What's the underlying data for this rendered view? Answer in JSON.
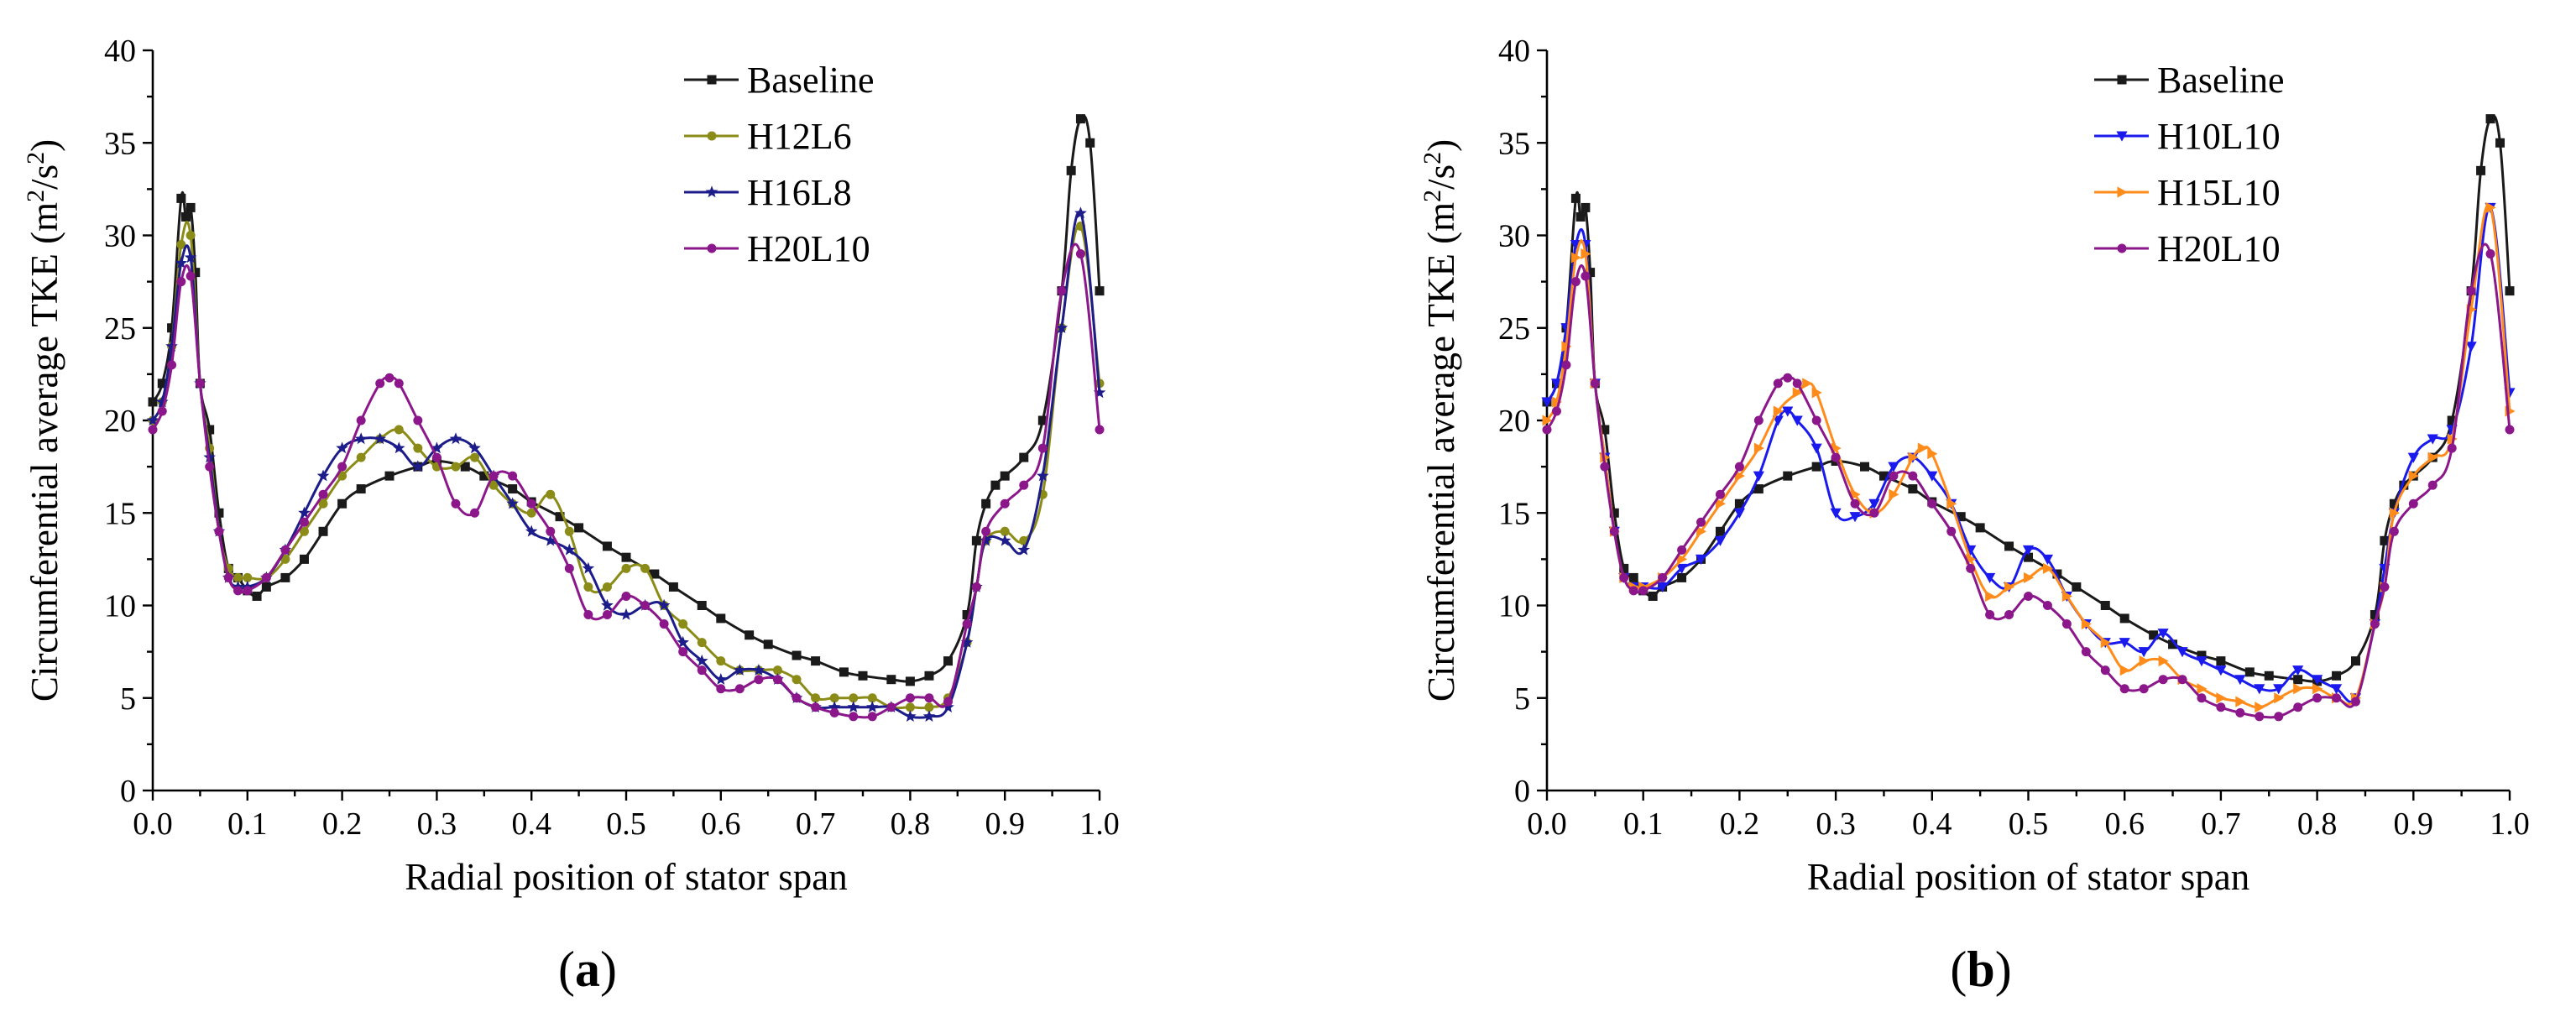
{
  "chart_data": [
    {
      "type": "line",
      "panel_label": "a",
      "xlabel": "Radial position of stator span",
      "ylabel": "Circumferential average TKE (m²/s²)",
      "ylabel_parts": {
        "pre": "Circumferential average TKE (m",
        "sup1": "2",
        "mid": "/s",
        "sup2": "2",
        "post": ")"
      },
      "xlim": [
        0,
        1
      ],
      "ylim": [
        0,
        40
      ],
      "xticks": [
        "0.0",
        "0.1",
        "0.2",
        "0.3",
        "0.4",
        "0.5",
        "0.6",
        "0.7",
        "0.8",
        "0.9",
        "1.0"
      ],
      "yticks": [
        "0",
        "5",
        "10",
        "15",
        "20",
        "25",
        "30",
        "35",
        "40"
      ],
      "legend": [
        "Baseline",
        "H12L6",
        "H16L8",
        "H20L10"
      ],
      "series": [
        {
          "name": "Baseline",
          "color": "#1a1a1a",
          "marker": "square",
          "x": [
            0.0,
            0.01,
            0.02,
            0.03,
            0.035,
            0.04,
            0.045,
            0.05,
            0.06,
            0.07,
            0.08,
            0.09,
            0.1,
            0.11,
            0.12,
            0.14,
            0.16,
            0.18,
            0.2,
            0.22,
            0.25,
            0.28,
            0.3,
            0.33,
            0.35,
            0.38,
            0.4,
            0.43,
            0.45,
            0.48,
            0.5,
            0.53,
            0.55,
            0.58,
            0.6,
            0.63,
            0.65,
            0.68,
            0.7,
            0.73,
            0.75,
            0.78,
            0.8,
            0.82,
            0.84,
            0.86,
            0.87,
            0.88,
            0.89,
            0.9,
            0.92,
            0.94,
            0.96,
            0.97,
            0.98,
            0.99,
            1.0
          ],
          "y": [
            21,
            22,
            25,
            32,
            31,
            31.5,
            28,
            22,
            19.5,
            15,
            12,
            11.5,
            10.8,
            10.5,
            11,
            11.5,
            12.5,
            14,
            15.5,
            16.3,
            17,
            17.5,
            17.8,
            17.5,
            17,
            16.3,
            15.6,
            14.8,
            14.2,
            13.2,
            12.6,
            11.7,
            11,
            10,
            9.3,
            8.4,
            7.9,
            7.3,
            7,
            6.4,
            6.2,
            6,
            5.9,
            6.2,
            7,
            9.5,
            13.5,
            15.5,
            16.5,
            17,
            18,
            20,
            27,
            33.5,
            36.3,
            35,
            27
          ]
        },
        {
          "name": "H12L6",
          "color": "#8b8b17",
          "marker": "circle",
          "x": [
            0.0,
            0.01,
            0.02,
            0.03,
            0.04,
            0.05,
            0.06,
            0.07,
            0.08,
            0.09,
            0.1,
            0.12,
            0.14,
            0.16,
            0.18,
            0.2,
            0.22,
            0.24,
            0.26,
            0.28,
            0.3,
            0.32,
            0.34,
            0.36,
            0.38,
            0.4,
            0.42,
            0.44,
            0.46,
            0.48,
            0.5,
            0.52,
            0.54,
            0.56,
            0.58,
            0.6,
            0.62,
            0.64,
            0.66,
            0.68,
            0.7,
            0.72,
            0.74,
            0.76,
            0.78,
            0.8,
            0.82,
            0.84,
            0.86,
            0.87,
            0.88,
            0.9,
            0.92,
            0.94,
            0.96,
            0.98,
            1.0
          ],
          "y": [
            20,
            21,
            24,
            29.5,
            30,
            22,
            18.5,
            14,
            12,
            11.5,
            11.5,
            11.5,
            12.5,
            14,
            15.5,
            17,
            18,
            19,
            19.5,
            18.5,
            17.5,
            17.5,
            18,
            16.5,
            15.5,
            15,
            16,
            14,
            11,
            11,
            12,
            12,
            10,
            9,
            8,
            7,
            6.5,
            6.5,
            6.5,
            6,
            5,
            5,
            5,
            5,
            4.5,
            4.5,
            4.5,
            5,
            8,
            11,
            13.5,
            14,
            13.5,
            16,
            25,
            30.5,
            22
          ]
        },
        {
          "name": "H16L8",
          "color": "#1c1c8a",
          "marker": "star",
          "x": [
            0.0,
            0.01,
            0.02,
            0.03,
            0.04,
            0.05,
            0.06,
            0.07,
            0.08,
            0.09,
            0.1,
            0.12,
            0.14,
            0.16,
            0.18,
            0.2,
            0.22,
            0.24,
            0.26,
            0.28,
            0.3,
            0.32,
            0.34,
            0.36,
            0.38,
            0.4,
            0.42,
            0.44,
            0.46,
            0.48,
            0.5,
            0.52,
            0.54,
            0.56,
            0.58,
            0.6,
            0.62,
            0.64,
            0.66,
            0.68,
            0.7,
            0.72,
            0.74,
            0.76,
            0.78,
            0.8,
            0.82,
            0.84,
            0.86,
            0.87,
            0.88,
            0.9,
            0.92,
            0.94,
            0.96,
            0.98,
            1.0
          ],
          "y": [
            20,
            21,
            24,
            28.5,
            28.8,
            22,
            18,
            14,
            11.5,
            11,
            11,
            11.5,
            13,
            15,
            17,
            18.5,
            19,
            19,
            18.5,
            17.5,
            18.5,
            19,
            18.5,
            17,
            15.5,
            14,
            13.5,
            13,
            12,
            10,
            9.5,
            10,
            10,
            8,
            7,
            6,
            6.5,
            6.5,
            6,
            5,
            4.5,
            4.5,
            4.5,
            4.5,
            4.5,
            4,
            4,
            4.5,
            8,
            11,
            13.5,
            13.5,
            13,
            17,
            25,
            31.2,
            21.5
          ]
        },
        {
          "name": "H20L10",
          "color": "#8b178b",
          "marker": "circle",
          "x": [
            0.0,
            0.01,
            0.02,
            0.03,
            0.04,
            0.05,
            0.06,
            0.07,
            0.08,
            0.09,
            0.1,
            0.12,
            0.14,
            0.16,
            0.18,
            0.2,
            0.22,
            0.24,
            0.25,
            0.26,
            0.28,
            0.3,
            0.32,
            0.34,
            0.36,
            0.38,
            0.4,
            0.42,
            0.44,
            0.46,
            0.48,
            0.5,
            0.52,
            0.54,
            0.56,
            0.58,
            0.6,
            0.62,
            0.64,
            0.66,
            0.68,
            0.7,
            0.72,
            0.74,
            0.76,
            0.78,
            0.8,
            0.82,
            0.84,
            0.86,
            0.87,
            0.88,
            0.9,
            0.92,
            0.94,
            0.96,
            0.98,
            1.0
          ],
          "y": [
            19.5,
            20.5,
            23,
            27.5,
            27.8,
            22,
            17.5,
            14,
            11.5,
            10.8,
            10.8,
            11.5,
            13,
            14.5,
            16,
            17.5,
            20,
            22,
            22.3,
            22,
            20,
            18,
            15.5,
            15,
            17,
            17,
            15.5,
            14,
            12,
            9.5,
            9.5,
            10.5,
            10,
            9,
            7.5,
            6.5,
            5.5,
            5.5,
            6,
            6,
            5,
            4.5,
            4.2,
            4,
            4,
            4.5,
            5,
            5,
            4.8,
            9,
            11,
            14,
            15.5,
            16.5,
            18.5,
            27,
            29,
            19.5
          ]
        }
      ]
    },
    {
      "type": "line",
      "panel_label": "b",
      "xlabel": "Radial position of stator span",
      "ylabel": "Circumferential average TKE (m²/s²)",
      "ylabel_parts": {
        "pre": "Circumferential average TKE (m",
        "sup1": "2",
        "mid": "/s",
        "sup2": "2",
        "post": ")"
      },
      "xlim": [
        0,
        1
      ],
      "ylim": [
        0,
        40
      ],
      "xticks": [
        "0.0",
        "0.1",
        "0.2",
        "0.3",
        "0.4",
        "0.5",
        "0.6",
        "0.7",
        "0.8",
        "0.9",
        "1.0"
      ],
      "yticks": [
        "0",
        "5",
        "10",
        "15",
        "20",
        "25",
        "30",
        "35",
        "40"
      ],
      "legend": [
        "Baseline",
        "H10L10",
        "H15L10",
        "H20L10"
      ],
      "series": [
        {
          "name": "Baseline",
          "color": "#1a1a1a",
          "marker": "square",
          "x": [
            0.0,
            0.01,
            0.02,
            0.03,
            0.035,
            0.04,
            0.045,
            0.05,
            0.06,
            0.07,
            0.08,
            0.09,
            0.1,
            0.11,
            0.12,
            0.14,
            0.16,
            0.18,
            0.2,
            0.22,
            0.25,
            0.28,
            0.3,
            0.33,
            0.35,
            0.38,
            0.4,
            0.43,
            0.45,
            0.48,
            0.5,
            0.53,
            0.55,
            0.58,
            0.6,
            0.63,
            0.65,
            0.68,
            0.7,
            0.73,
            0.75,
            0.78,
            0.8,
            0.82,
            0.84,
            0.86,
            0.87,
            0.88,
            0.89,
            0.9,
            0.92,
            0.94,
            0.96,
            0.97,
            0.98,
            0.99,
            1.0
          ],
          "y": [
            21,
            22,
            25,
            32,
            31,
            31.5,
            28,
            22,
            19.5,
            15,
            12,
            11.5,
            10.8,
            10.5,
            11,
            11.5,
            12.5,
            14,
            15.5,
            16.3,
            17,
            17.5,
            17.8,
            17.5,
            17,
            16.3,
            15.6,
            14.8,
            14.2,
            13.2,
            12.6,
            11.7,
            11,
            10,
            9.3,
            8.4,
            7.9,
            7.3,
            7,
            6.4,
            6.2,
            6,
            5.9,
            6.2,
            7,
            9.5,
            13.5,
            15.5,
            16.5,
            17,
            18,
            20,
            27,
            33.5,
            36.3,
            35,
            27
          ]
        },
        {
          "name": "H10L10",
          "color": "#1a1aee",
          "marker": "triangle-down",
          "x": [
            0.0,
            0.01,
            0.02,
            0.03,
            0.04,
            0.05,
            0.06,
            0.07,
            0.08,
            0.09,
            0.1,
            0.12,
            0.14,
            0.16,
            0.18,
            0.2,
            0.22,
            0.24,
            0.25,
            0.26,
            0.28,
            0.3,
            0.32,
            0.34,
            0.36,
            0.38,
            0.4,
            0.42,
            0.44,
            0.46,
            0.48,
            0.5,
            0.52,
            0.54,
            0.56,
            0.58,
            0.6,
            0.62,
            0.64,
            0.66,
            0.68,
            0.7,
            0.72,
            0.74,
            0.76,
            0.78,
            0.8,
            0.82,
            0.84,
            0.86,
            0.87,
            0.88,
            0.9,
            0.92,
            0.94,
            0.96,
            0.98,
            1.0
          ],
          "y": [
            21,
            22,
            25,
            29.5,
            29.5,
            22,
            18,
            14,
            11.5,
            11,
            11,
            11,
            12,
            12.5,
            13.5,
            15,
            17,
            20,
            20.5,
            20,
            18.5,
            15,
            14.8,
            15.5,
            17.5,
            18,
            17,
            15.5,
            13,
            11.5,
            11,
            13,
            12.5,
            10.5,
            9,
            8,
            8,
            7.5,
            8.5,
            7.5,
            7,
            6.5,
            6,
            5.5,
            5.5,
            6.5,
            6,
            5.5,
            5,
            9,
            12,
            15,
            18,
            19,
            19.5,
            24,
            31.5,
            21.5
          ]
        },
        {
          "name": "H15L10",
          "color": "#ff8c1a",
          "marker": "triangle-right",
          "x": [
            0.0,
            0.01,
            0.02,
            0.03,
            0.04,
            0.05,
            0.06,
            0.07,
            0.08,
            0.09,
            0.1,
            0.12,
            0.14,
            0.16,
            0.18,
            0.2,
            0.22,
            0.24,
            0.26,
            0.27,
            0.28,
            0.3,
            0.32,
            0.34,
            0.36,
            0.38,
            0.39,
            0.4,
            0.42,
            0.44,
            0.46,
            0.48,
            0.5,
            0.52,
            0.54,
            0.56,
            0.58,
            0.6,
            0.62,
            0.64,
            0.66,
            0.68,
            0.7,
            0.72,
            0.74,
            0.76,
            0.78,
            0.8,
            0.82,
            0.84,
            0.86,
            0.87,
            0.88,
            0.9,
            0.92,
            0.94,
            0.96,
            0.98,
            1.0
          ],
          "y": [
            20,
            21,
            24,
            28.8,
            29,
            22,
            18,
            14,
            11.5,
            11,
            11,
            11.5,
            12.5,
            14,
            15.5,
            17,
            18.5,
            20.5,
            21.5,
            22,
            21.5,
            18.5,
            16,
            15,
            16,
            18,
            18.5,
            18.2,
            15.5,
            12.5,
            10.5,
            11,
            11.5,
            12,
            10.5,
            9,
            8,
            6.5,
            7,
            7,
            6,
            5.5,
            5,
            4.8,
            4.5,
            5,
            5.5,
            5.5,
            5,
            5,
            9,
            11,
            15,
            17,
            18,
            19,
            26,
            31.5,
            20.5
          ]
        },
        {
          "name": "H20L10",
          "color": "#8b178b",
          "marker": "circle",
          "x": [
            0.0,
            0.01,
            0.02,
            0.03,
            0.04,
            0.05,
            0.06,
            0.07,
            0.08,
            0.09,
            0.1,
            0.12,
            0.14,
            0.16,
            0.18,
            0.2,
            0.22,
            0.24,
            0.25,
            0.26,
            0.28,
            0.3,
            0.32,
            0.34,
            0.36,
            0.38,
            0.4,
            0.42,
            0.44,
            0.46,
            0.48,
            0.5,
            0.52,
            0.54,
            0.56,
            0.58,
            0.6,
            0.62,
            0.64,
            0.66,
            0.68,
            0.7,
            0.72,
            0.74,
            0.76,
            0.78,
            0.8,
            0.82,
            0.84,
            0.86,
            0.87,
            0.88,
            0.9,
            0.92,
            0.94,
            0.96,
            0.98,
            1.0
          ],
          "y": [
            19.5,
            20.5,
            23,
            27.5,
            27.8,
            22,
            17.5,
            14,
            11.5,
            10.8,
            10.8,
            11.5,
            13,
            14.5,
            16,
            17.5,
            20,
            22,
            22.3,
            22,
            20,
            18,
            15.5,
            15,
            17,
            17,
            15.5,
            14,
            12,
            9.5,
            9.5,
            10.5,
            10,
            9,
            7.5,
            6.5,
            5.5,
            5.5,
            6,
            6,
            5,
            4.5,
            4.2,
            4,
            4,
            4.5,
            5,
            5,
            4.8,
            9,
            11,
            14,
            15.5,
            16.5,
            18.5,
            27,
            29,
            19.5
          ]
        }
      ]
    }
  ]
}
